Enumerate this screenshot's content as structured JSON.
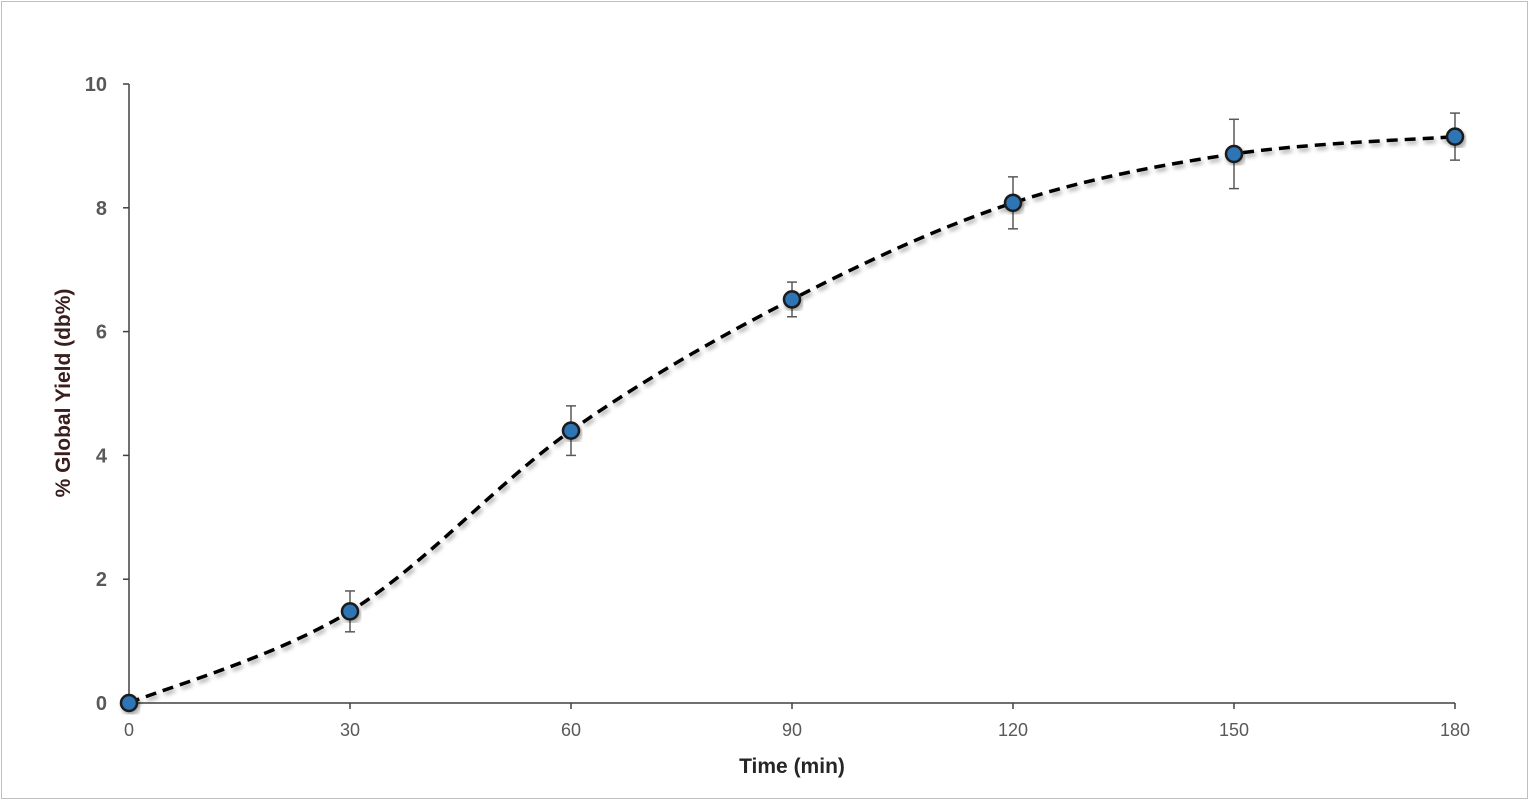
{
  "chart_data": {
    "type": "scatter",
    "title": "",
    "xlabel": "Time (min)",
    "ylabel": "% Global Yield (db%)",
    "xlim": [
      0,
      180
    ],
    "ylim": [
      0,
      10
    ],
    "x_ticks": [
      "0",
      "30",
      "60",
      "90",
      "120",
      "150",
      "180"
    ],
    "y_ticks": [
      "0",
      "2",
      "4",
      "6",
      "8",
      "10"
    ],
    "grid": false,
    "legend": "none",
    "series": [
      {
        "x": [
          0,
          30,
          60,
          90,
          120,
          150,
          180
        ],
        "y": [
          0,
          1.48,
          4.4,
          6.52,
          8.08,
          8.87,
          9.15
        ],
        "error": [
          0,
          0.33,
          0.4,
          0.28,
          0.42,
          0.56,
          0.38
        ],
        "marker_color": "#2e75b6",
        "fit_line": "dashed",
        "fit_color": "#000000"
      }
    ]
  }
}
